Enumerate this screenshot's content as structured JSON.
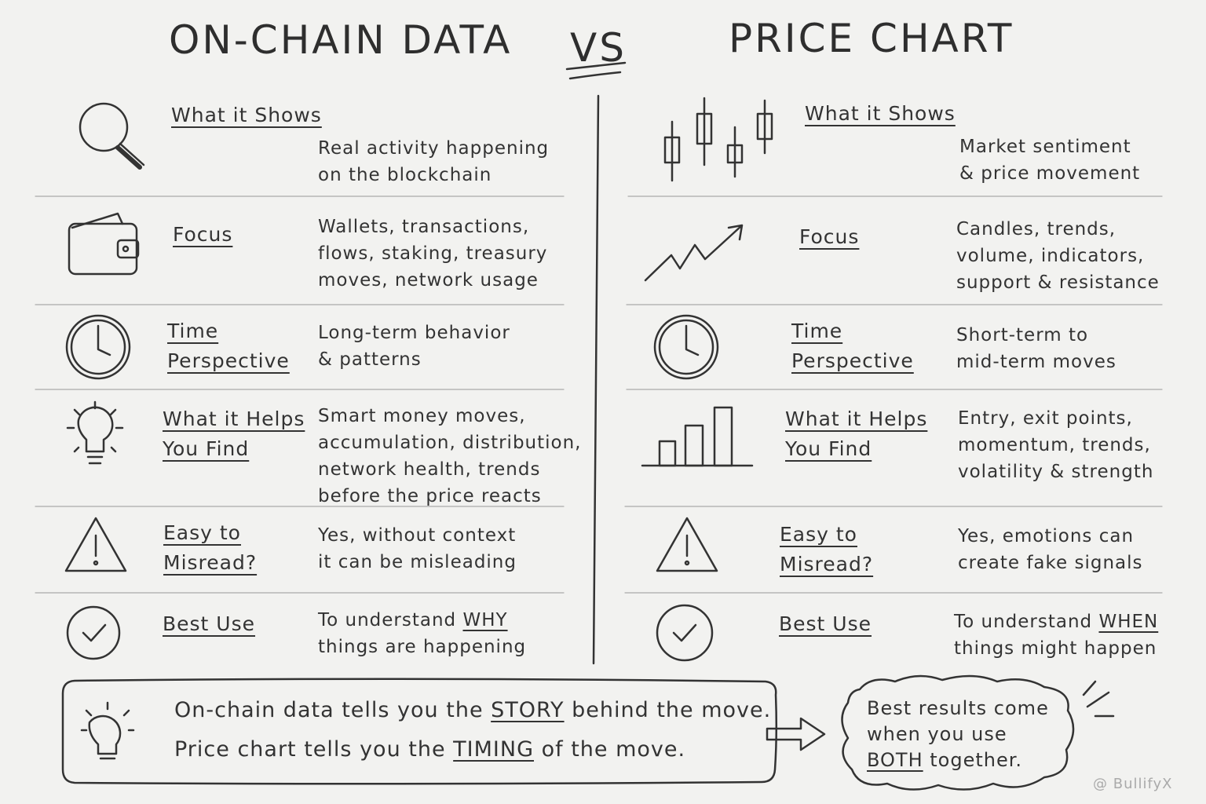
{
  "header": {
    "left_title": "ON-CHAIN DATA",
    "vs": "VS",
    "right_title": "PRICE CHART"
  },
  "left_rows": [
    {
      "label": [
        "What it Shows"
      ],
      "description": [
        [
          "Real activity happening"
        ],
        [
          "on the blockchain"
        ]
      ]
    },
    {
      "label": [
        "Focus"
      ],
      "description": [
        [
          "Wallets, transactions,"
        ],
        [
          "flows, staking, treasury"
        ],
        [
          "moves, network usage"
        ]
      ]
    },
    {
      "label": [
        "Time",
        "Perspective"
      ],
      "description": [
        [
          "Long-term behavior"
        ],
        [
          "& patterns"
        ]
      ]
    },
    {
      "label": [
        "What it Helps",
        "You Find"
      ],
      "description": [
        [
          "Smart money moves,"
        ],
        [
          "accumulation, distribution,"
        ],
        [
          "network health, trends"
        ],
        [
          "before the price reacts"
        ]
      ]
    },
    {
      "label": [
        "Easy to",
        "Misread?"
      ],
      "description": [
        [
          "Yes, without context"
        ],
        [
          "it can be misleading"
        ]
      ]
    },
    {
      "label": [
        "Best Use"
      ],
      "description": [
        [
          "To understand ",
          {
            "text": "WHY",
            "underline": true
          }
        ],
        [
          "things are happening"
        ]
      ]
    }
  ],
  "right_rows": [
    {
      "label": [
        "What it Shows"
      ],
      "description": [
        [
          "Market sentiment"
        ],
        [
          "& price movement"
        ]
      ]
    },
    {
      "label": [
        "Focus"
      ],
      "description": [
        [
          "Candles, trends,"
        ],
        [
          "volume, indicators,"
        ],
        [
          "support & resistance"
        ]
      ]
    },
    {
      "label": [
        "Time",
        "Perspective"
      ],
      "description": [
        [
          "Short-term to"
        ],
        [
          "mid-term moves"
        ]
      ]
    },
    {
      "label": [
        "What it Helps",
        "You Find"
      ],
      "description": [
        [
          "Entry, exit points,"
        ],
        [
          "momentum, trends,"
        ],
        [
          "volatility & strength"
        ]
      ]
    },
    {
      "label": [
        "Easy to",
        "Misread?"
      ],
      "description": [
        [
          "Yes, emotions can"
        ],
        [
          "create fake signals"
        ]
      ]
    },
    {
      "label": [
        "Best Use"
      ],
      "description": [
        [
          "To understand ",
          {
            "text": "WHEN",
            "underline": true
          }
        ],
        [
          "things might happen"
        ]
      ]
    }
  ],
  "footer": {
    "lines": [
      [
        "On-chain data tells you the ",
        {
          "text": "STORY",
          "underline": true
        },
        " behind the move."
      ],
      [
        "Price chart tells you the ",
        {
          "text": "TIMING",
          "underline": true
        },
        " of the move."
      ]
    ],
    "callout": [
      [
        "Best results come"
      ],
      [
        "when you use"
      ],
      [
        {
          "text": "BOTH",
          "underline": true
        },
        " together."
      ]
    ]
  },
  "watermark": "@ BullifyX"
}
